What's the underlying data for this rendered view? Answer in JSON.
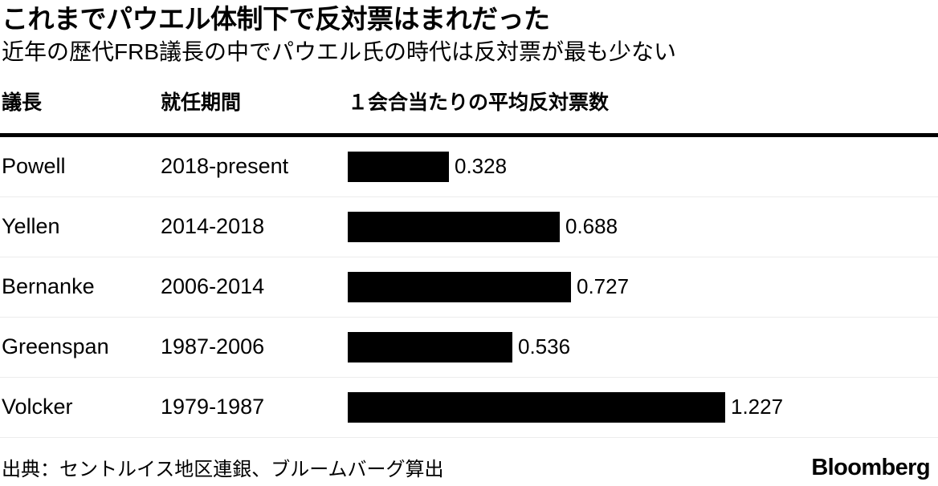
{
  "header": {
    "title": "これまでパウエル体制下で反対票はまれだった",
    "subtitle": "近年の歴代FRB議長の中でパウエル氏の時代は反対票が最も少ない"
  },
  "table": {
    "columns": {
      "chair": "議長",
      "tenure": "就任期間",
      "avg_dissents": "１会合当たりの平均反対票数"
    }
  },
  "chart_data": {
    "type": "bar",
    "orientation": "horizontal",
    "title": "これまでパウエル体制下で反対票はまれだった",
    "subtitle": "近年の歴代FRB議長の中でパウエル氏の時代は反対票が最も少ない",
    "column_headers": [
      "議長",
      "就任期間",
      "１会合当たりの平均反対票数"
    ],
    "categories": [
      "Powell",
      "Yellen",
      "Bernanke",
      "Greenspan",
      "Volcker"
    ],
    "tenures": [
      "2018-present",
      "2014-2018",
      "2006-2014",
      "1987-2006",
      "1979-1987"
    ],
    "values": [
      0.328,
      0.688,
      0.727,
      0.536,
      1.227
    ],
    "value_labels": [
      "0.328",
      "0.688",
      "0.727",
      "0.536",
      "1.227"
    ],
    "xlim": [
      0,
      1.227
    ],
    "bar_color": "#000000",
    "grid": false,
    "legend": false
  },
  "footer": {
    "source": "出典：セントルイス地区連銀、ブルームバーグ算出",
    "brand": "Bloomberg"
  },
  "colors": {
    "background": "#ffffff",
    "text": "#000000",
    "bar": "#000000",
    "header_rule": "#000000",
    "row_divider": "#ececec"
  }
}
